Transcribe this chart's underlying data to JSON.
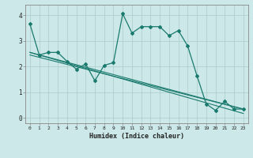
{
  "xlabel": "Humidex (Indice chaleur)",
  "background_color": "#cce8e8",
  "line_color": "#1a7a6e",
  "xlim": [
    -0.5,
    23.5
  ],
  "ylim": [
    -0.2,
    4.4
  ],
  "xticks": [
    0,
    1,
    2,
    3,
    4,
    5,
    6,
    7,
    8,
    9,
    10,
    11,
    12,
    13,
    14,
    15,
    16,
    17,
    18,
    19,
    20,
    21,
    22,
    23
  ],
  "yticks": [
    0,
    1,
    2,
    3,
    4
  ],
  "grid_color": "#aacccc",
  "line1_x": [
    0,
    1,
    2,
    3,
    4,
    5,
    6,
    7,
    8,
    9,
    10,
    11,
    12,
    13,
    14,
    15,
    16,
    17,
    18,
    19,
    20,
    21,
    22,
    23
  ],
  "line1_y": [
    3.65,
    2.45,
    2.55,
    2.55,
    2.2,
    1.9,
    2.1,
    1.45,
    2.05,
    2.15,
    4.05,
    3.3,
    3.55,
    3.55,
    3.55,
    3.2,
    3.4,
    2.8,
    1.65,
    0.55,
    0.3,
    0.65,
    0.35,
    0.35
  ],
  "line2_x": [
    0,
    23
  ],
  "line2_y": [
    2.55,
    0.35
  ],
  "line3_x": [
    0,
    23
  ],
  "line3_y": [
    2.55,
    0.18
  ],
  "line4_x": [
    0,
    23
  ],
  "line4_y": [
    2.45,
    0.35
  ]
}
